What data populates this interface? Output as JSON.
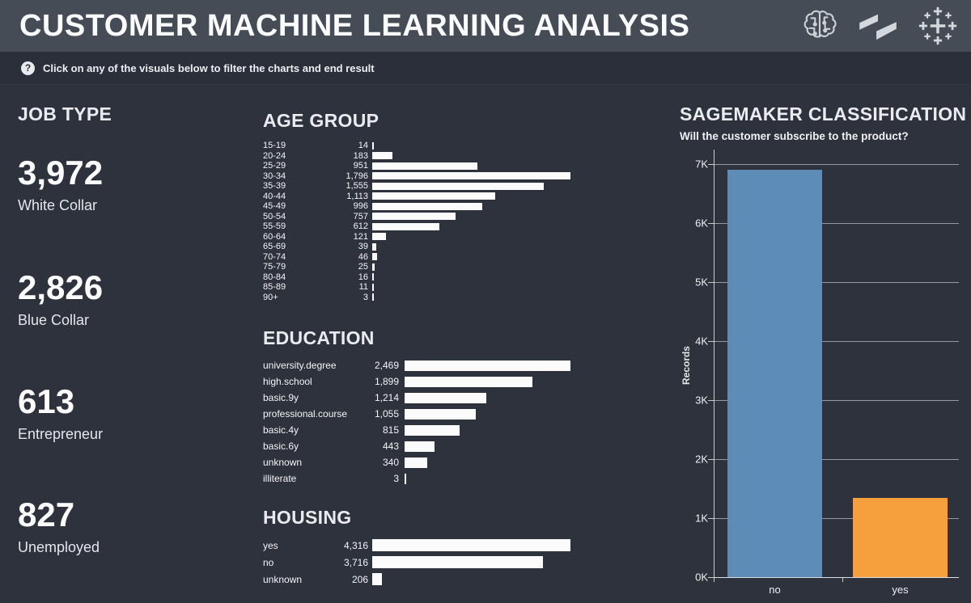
{
  "header": {
    "title": "CUSTOMER MACHINE LEARNING ANALYSIS",
    "icons": [
      "brain-ml-icon",
      "sagemaker-logo-icon",
      "tableau-logo-icon"
    ]
  },
  "help_bar": {
    "icon_glyph": "?",
    "text": "Click on any of the visuals below to filter the charts and end result"
  },
  "job_type": {
    "title": "JOB TYPE",
    "kpis": [
      {
        "value": "3,972",
        "label": "White Collar"
      },
      {
        "value": "2,826",
        "label": "Blue Collar"
      },
      {
        "value": "613",
        "label": "Entrepreneur"
      },
      {
        "value": "827",
        "label": "Unemployed"
      }
    ]
  },
  "chart_data": [
    {
      "id": "age_group",
      "type": "bar",
      "orientation": "horizontal",
      "title": "AGE GROUP",
      "categories": [
        "15-19",
        "20-24",
        "25-29",
        "30-34",
        "35-39",
        "40-44",
        "45-49",
        "50-54",
        "55-59",
        "60-64",
        "65-69",
        "70-74",
        "75-79",
        "80-84",
        "85-89",
        "90+"
      ],
      "values": [
        14,
        183,
        951,
        1796,
        1555,
        1113,
        996,
        757,
        612,
        121,
        39,
        46,
        25,
        16,
        11,
        3
      ],
      "value_labels": [
        "14",
        "183",
        "951",
        "1,796",
        "1,555",
        "1,113",
        "996",
        "757",
        "612",
        "121",
        "39",
        "46",
        "25",
        "16",
        "11",
        "3"
      ],
      "bar_color": "#fbfbfc"
    },
    {
      "id": "education",
      "type": "bar",
      "orientation": "horizontal",
      "title": "EDUCATION",
      "categories": [
        "university.degree",
        "high.school",
        "basic.9y",
        "professional.course",
        "basic.4y",
        "basic.6y",
        "unknown",
        "illiterate"
      ],
      "values": [
        2469,
        1899,
        1214,
        1055,
        815,
        443,
        340,
        3
      ],
      "value_labels": [
        "2,469",
        "1,899",
        "1,214",
        "1,055",
        "815",
        "443",
        "340",
        "3"
      ],
      "bar_color": "#fbfbfc"
    },
    {
      "id": "housing",
      "type": "bar",
      "orientation": "horizontal",
      "title": "HOUSING",
      "categories": [
        "yes",
        "no",
        "unknown"
      ],
      "values": [
        4316,
        3716,
        206
      ],
      "value_labels": [
        "4,316",
        "3,716",
        "206"
      ],
      "bar_color": "#fbfbfc"
    },
    {
      "id": "sagemaker",
      "type": "bar",
      "orientation": "vertical",
      "title": "SAGEMAKER CLASSIFICATION",
      "subtitle": "Will the customer subscribe to the product?",
      "categories": [
        "no",
        "yes"
      ],
      "values": [
        6900,
        1340
      ],
      "ylabel": "Records",
      "ylim": [
        0,
        7180
      ],
      "yticks": [
        0,
        1000,
        2000,
        3000,
        4000,
        5000,
        6000,
        7000
      ],
      "ytick_labels": [
        "0K",
        "1K",
        "2K",
        "3K",
        "4K",
        "5K",
        "6K",
        "7K"
      ],
      "bar_colors": [
        "#5d8cb8",
        "#f5a03c"
      ],
      "grid": true,
      "legend": "none"
    }
  ],
  "colors": {
    "header_bg": "#454c55",
    "help_bar_bg": "#2b2f39",
    "background": "#2e323d",
    "bar_fill": "#fbfbfc",
    "no_bar": "#5d8cb8",
    "yes_bar": "#f5a03c",
    "grid_line": "#eceff3"
  }
}
